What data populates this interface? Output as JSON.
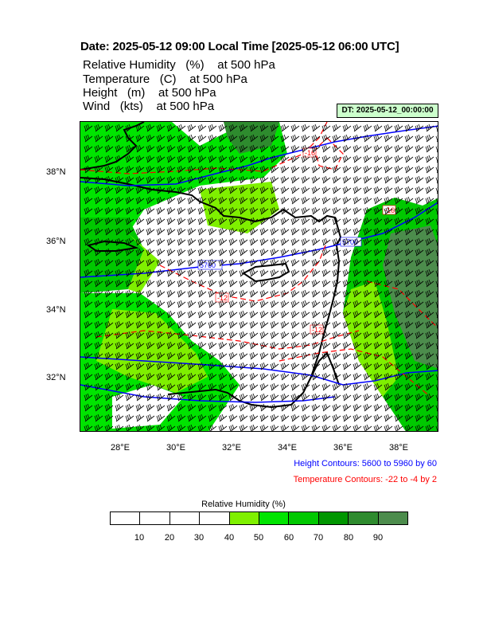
{
  "title": "Date: 2025-05-12  09:00 Local Time [2025-05-12  06:00 UTC]",
  "variables": [
    {
      "name": "Relative Humidity",
      "unit": "(%)",
      "level": "at   500 hPa"
    },
    {
      "name": "Temperature",
      "unit": "(C)",
      "level": "at   500 hPa"
    },
    {
      "name": "Height",
      "unit": "(m)",
      "level": "at   500 hPa"
    },
    {
      "name": "Wind",
      "unit": "(kts)",
      "level": "at   500 hPa"
    }
  ],
  "dt_badge": "DT: 2025-05-12_00:00:00",
  "map": {
    "lat_labels": [
      "38°N",
      "36°N",
      "34°N",
      "32°N"
    ],
    "lon_labels": [
      "28°E",
      "30°E",
      "32°E",
      "34°E",
      "36°E",
      "38°E"
    ],
    "height_contour_labels": [
      "5760",
      "5700"
    ],
    "temperature_contour_labels": [
      "-16",
      "-12",
      "-12",
      "-16"
    ],
    "colors": {
      "height_contour": "#0000ff",
      "temperature_contour": "#ff0000",
      "coastline": "#000000",
      "wind_barb": "#000000"
    }
  },
  "height_contours_note": "Height Contours: 5600 to 5960 by 60",
  "temperature_contours_note": "Temperature Contours: -22 to -4 by 2",
  "colorbar": {
    "title": "Relative Humidity  (%)",
    "labels": [
      "10",
      "20",
      "30",
      "40",
      "50",
      "60",
      "70",
      "80",
      "90"
    ],
    "colors": [
      "#ffffff",
      "#ffffff",
      "#ffffff",
      "#ffffff",
      "#7ff000",
      "#00e400",
      "#00c800",
      "#009600",
      "#2e8b2e",
      "#4c8c4c"
    ]
  }
}
